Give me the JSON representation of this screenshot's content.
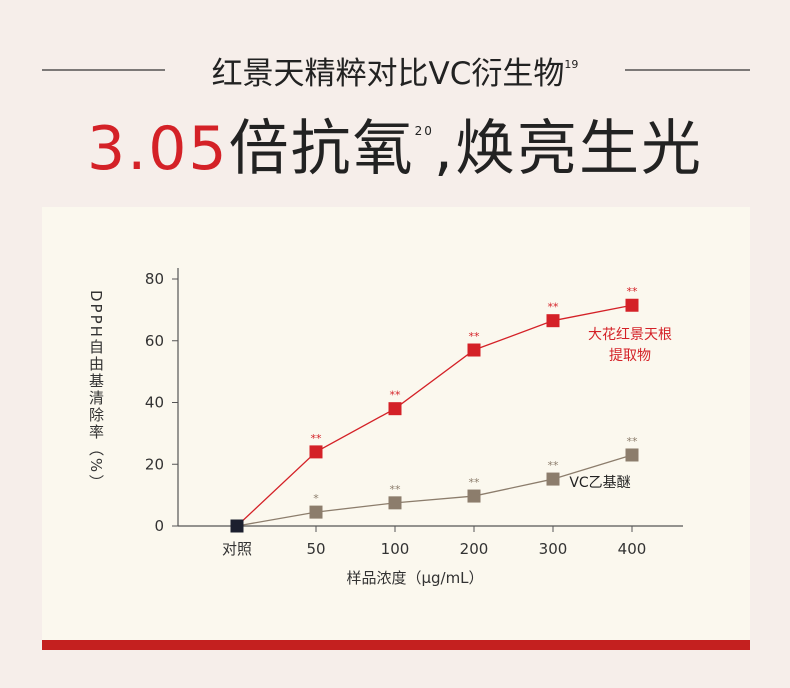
{
  "header": {
    "title": "红景天精粹对比VC衍生物",
    "title_sup": "19",
    "headline_number": "3.05",
    "headline_text": "倍抗氧",
    "headline_sup": "20",
    "headline_tail": ",焕亮生光"
  },
  "chart_data": {
    "type": "line",
    "categories": [
      "对照",
      "50",
      "100",
      "200",
      "300",
      "400"
    ],
    "x_label": "样品浓度（μg/mL）",
    "y_label": "DPPH自由基清除率（%）",
    "ylim": [
      0,
      80
    ],
    "yticks": [
      0,
      20,
      40,
      60,
      80
    ],
    "control_color": "#1b1f2e",
    "series": [
      {
        "name": "大花红景天根提取物",
        "color": "#d42127",
        "values": [
          0,
          24,
          38,
          57,
          66.5,
          71.5
        ],
        "significance": [
          null,
          "**",
          "**",
          "**",
          "**",
          "**"
        ]
      },
      {
        "name": "VC乙基醚",
        "color": "#8c7d6c",
        "values": [
          0,
          4.5,
          7.5,
          9.7,
          15.2,
          23
        ],
        "significance": [
          null,
          "*",
          "**",
          "**",
          "**",
          "**"
        ]
      }
    ]
  }
}
